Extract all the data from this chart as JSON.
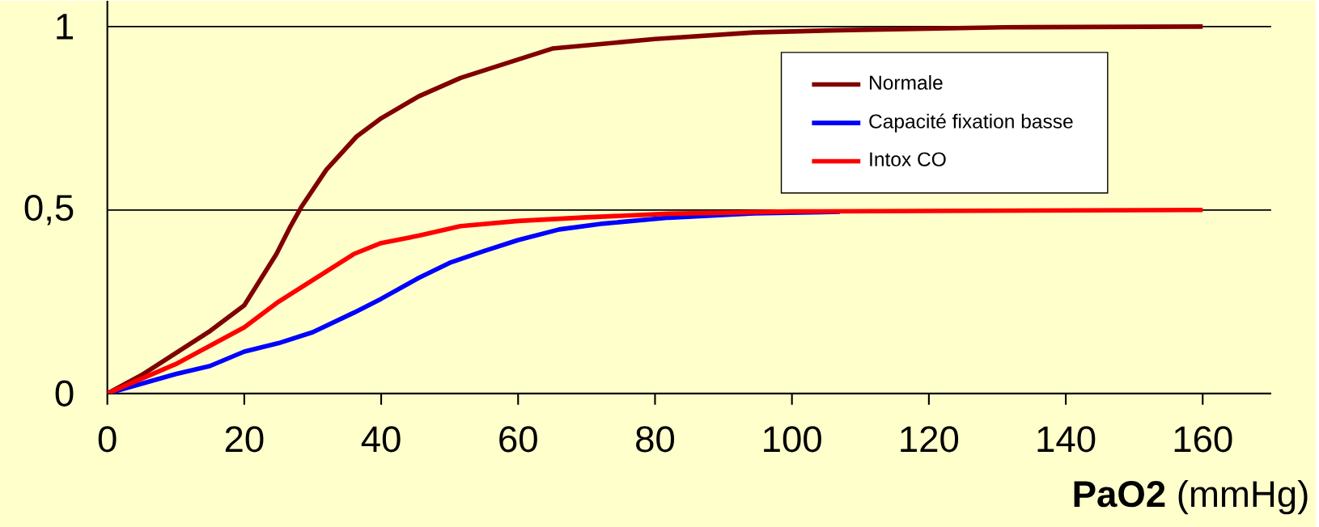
{
  "chart_data": {
    "type": "line",
    "xlabel": "**PaO2** (mmHg)",
    "xlim": [
      0,
      170
    ],
    "ylim": [
      0,
      1.07
    ],
    "xticks": [
      0,
      20,
      40,
      60,
      80,
      100,
      120,
      140,
      160
    ],
    "yticks": [
      0,
      {
        "value": 0.5,
        "label": "0,5"
      },
      1
    ],
    "grid": "y",
    "legend": "top right",
    "marker": "none",
    "line_style": "solid",
    "series": [
      {
        "name": "Normale",
        "color": "#800000",
        "x": [
          0,
          5,
          10,
          15,
          20,
          24.7,
          26.6,
          28.4,
          32,
          36.4,
          40,
          45.5,
          51.6,
          60,
          65,
          80,
          94.5,
          107,
          131,
          160
        ],
        "values": [
          0,
          0.05,
          0.11,
          0.17,
          0.24,
          0.38,
          0.45,
          0.51,
          0.61,
          0.7,
          0.75,
          0.81,
          0.86,
          0.91,
          0.94,
          0.966,
          0.984,
          0.99,
          0.998,
          1
        ]
      },
      {
        "name": "Capacité fixation basse",
        "color": "#0000ff",
        "x": [
          0,
          10,
          15,
          20,
          25,
          30,
          36,
          40,
          45.5,
          50,
          55,
          60,
          66,
          72.5,
          82,
          94.5,
          107
        ],
        "values": [
          0,
          0.053,
          0.075,
          0.114,
          0.137,
          0.167,
          0.22,
          0.258,
          0.315,
          0.356,
          0.388,
          0.418,
          0.447,
          0.463,
          0.479,
          0.491,
          0.495
        ]
      },
      {
        "name": "Intox CO",
        "color": "#ff0000",
        "x": [
          0,
          10,
          15,
          20,
          25,
          28.4,
          36,
          40,
          45.5,
          51.6,
          60,
          70,
          82,
          100,
          160
        ],
        "values": [
          0,
          0.08,
          0.13,
          0.18,
          0.25,
          0.29,
          0.38,
          0.41,
          0.43,
          0.456,
          0.47,
          0.48,
          0.49,
          0.496,
          0.5
        ]
      }
    ]
  }
}
